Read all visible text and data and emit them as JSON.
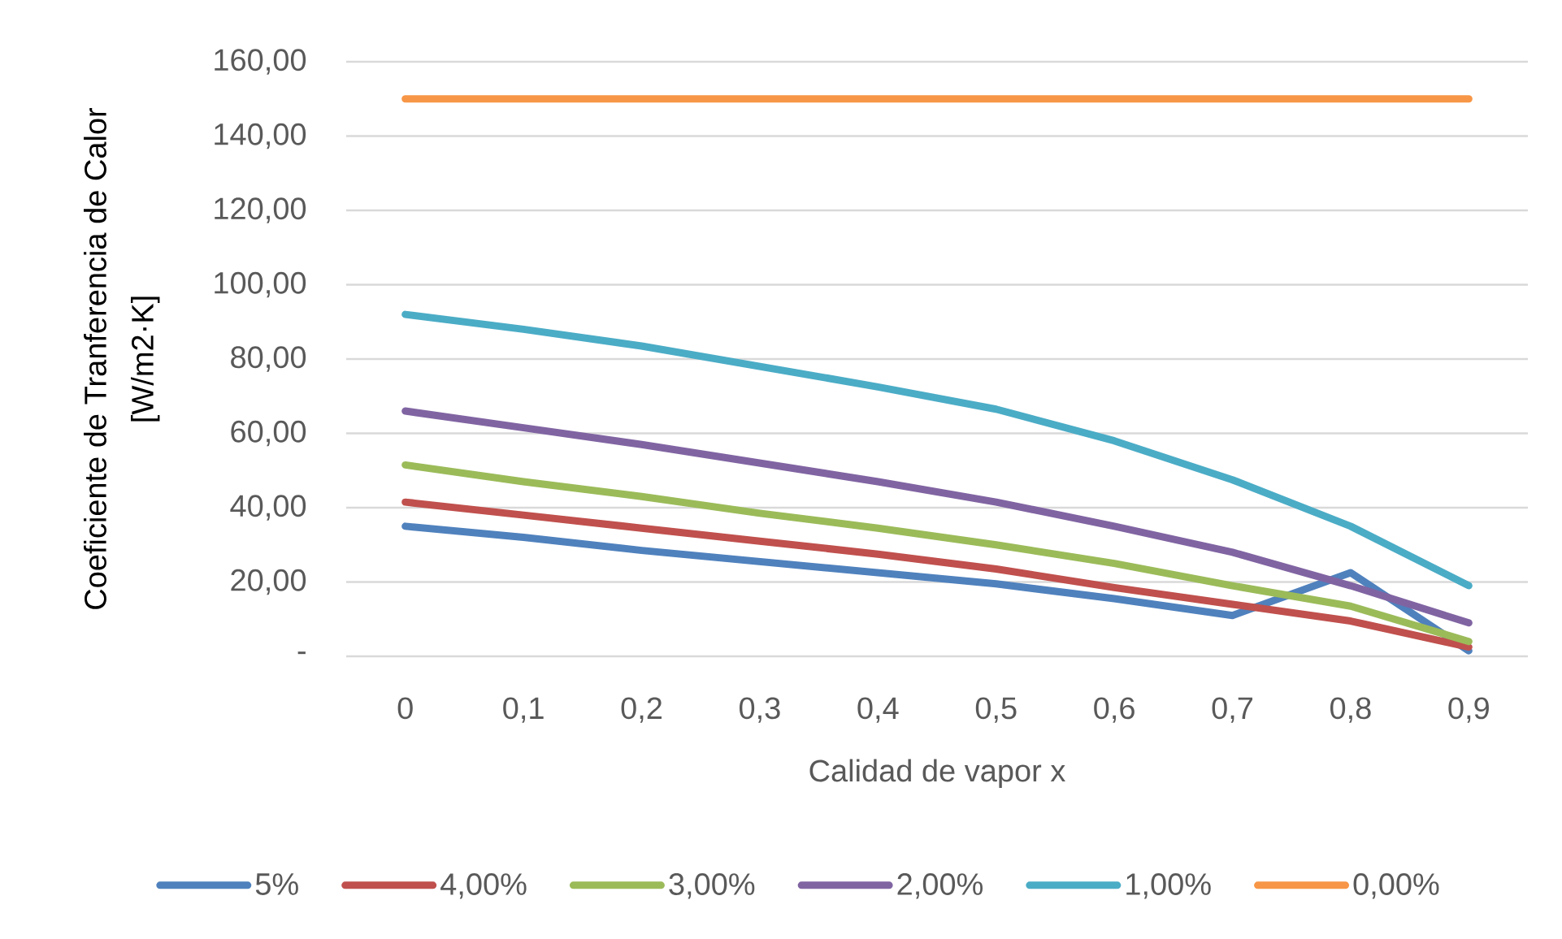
{
  "chart_data": {
    "type": "line",
    "xlabel": "Calidad de vapor x",
    "ylabel": "Coeficiente de Tranferencia de Calor [W/m2·K]",
    "categories": [
      "0",
      "0,1",
      "0,2",
      "0,3",
      "0,4",
      "0,5",
      "0,6",
      "0,7",
      "0,8",
      "0,9"
    ],
    "series": [
      {
        "name": "5%",
        "color": "#4f81bd",
        "values": [
          35,
          32,
          28.5,
          25.5,
          22.5,
          19.5,
          15.5,
          11,
          22.5,
          1.5
        ]
      },
      {
        "name": "4,00%",
        "color": "#c0504d",
        "values": [
          41.5,
          38,
          34.5,
          31,
          27.5,
          23.5,
          18.5,
          14,
          9.5,
          2.5
        ]
      },
      {
        "name": "3,00%",
        "color": "#9bbb59",
        "values": [
          51.5,
          47,
          43,
          38.5,
          34.5,
          30,
          25,
          19,
          13.5,
          4
        ]
      },
      {
        "name": "2,00%",
        "color": "#8064a2",
        "values": [
          66,
          61.5,
          57,
          52,
          47,
          41.5,
          35,
          28,
          19,
          9
        ]
      },
      {
        "name": "1,00%",
        "color": "#4bacc6",
        "values": [
          92,
          88,
          83.5,
          78,
          72.5,
          66.5,
          58,
          47.5,
          35,
          19
        ]
      },
      {
        "name": "0,00%",
        "color": "#f79646",
        "values": [
          150,
          150,
          150,
          150,
          150,
          150,
          150,
          150,
          150,
          150
        ]
      }
    ],
    "ylim": [
      0,
      160
    ],
    "yticks": [
      {
        "value": 0,
        "label": "-"
      },
      {
        "value": 20,
        "label": "20,00"
      },
      {
        "value": 40,
        "label": "40,00"
      },
      {
        "value": 60,
        "label": "60,00"
      },
      {
        "value": 80,
        "label": "80,00"
      },
      {
        "value": 100,
        "label": "100,00"
      },
      {
        "value": 120,
        "label": "120,00"
      },
      {
        "value": 140,
        "label": "140,00"
      },
      {
        "value": 160,
        "label": "160,00"
      }
    ],
    "grid": "y",
    "legend": "bottom",
    "marker": "none",
    "line_style": "solid"
  }
}
